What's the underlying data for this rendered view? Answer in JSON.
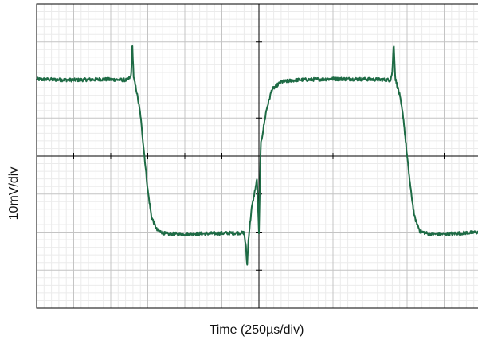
{
  "chart_data": {
    "type": "line",
    "title": "",
    "xlabel": "Time (250µs/div)",
    "ylabel": "10mV/div",
    "x_unit": "div",
    "y_unit": "div",
    "xlim": [
      -6,
      6
    ],
    "ylim": [
      -4,
      4
    ],
    "grid": {
      "major": true,
      "minor": true,
      "major_divisions_x": 12,
      "major_divisions_y": 8,
      "minor_per_major": 5
    },
    "legend": "none",
    "series": [
      {
        "color": "#1e6b45",
        "points": [
          [
            -6.0,
            2.02
          ],
          [
            -5.0,
            2.0
          ],
          [
            -4.2,
            2.02
          ],
          [
            -3.55,
            2.0
          ],
          [
            -3.45,
            2.1
          ],
          [
            -3.42,
            3.0
          ],
          [
            -3.38,
            2.05
          ],
          [
            -3.3,
            1.7
          ],
          [
            -3.2,
            1.1
          ],
          [
            -3.1,
            0.1
          ],
          [
            -3.0,
            -0.9
          ],
          [
            -2.9,
            -1.6
          ],
          [
            -2.75,
            -1.95
          ],
          [
            -2.5,
            -2.05
          ],
          [
            -2.0,
            -2.05
          ],
          [
            -1.0,
            -2.03
          ],
          [
            0.0,
            -2.05
          ],
          [
            -0.4,
            -2.02
          ],
          [
            -0.35,
            -2.4
          ],
          [
            -0.32,
            -2.9
          ],
          [
            -0.28,
            -2.15
          ],
          [
            -0.2,
            -1.4
          ],
          [
            -0.05,
            -0.6
          ],
          [
            0.05,
            0.3
          ],
          [
            0.2,
            1.2
          ],
          [
            0.35,
            1.75
          ],
          [
            0.6,
            1.95
          ],
          [
            1.0,
            2.0
          ],
          [
            2.0,
            2.03
          ],
          [
            3.0,
            2.02
          ],
          [
            3.55,
            2.0
          ],
          [
            3.6,
            2.2
          ],
          [
            3.64,
            3.0
          ],
          [
            3.68,
            2.05
          ],
          [
            3.8,
            1.6
          ],
          [
            3.9,
            1.0
          ],
          [
            4.0,
            0.0
          ],
          [
            4.1,
            -0.9
          ],
          [
            4.2,
            -1.6
          ],
          [
            4.35,
            -1.98
          ],
          [
            4.6,
            -2.05
          ],
          [
            5.0,
            -2.05
          ],
          [
            6.0,
            -2.0
          ]
        ]
      }
    ]
  },
  "colors": {
    "trace": "#1e6b45",
    "minor_grid": "#ebebeb",
    "major_grid": "#c4c4c4",
    "frame": "#000000"
  }
}
